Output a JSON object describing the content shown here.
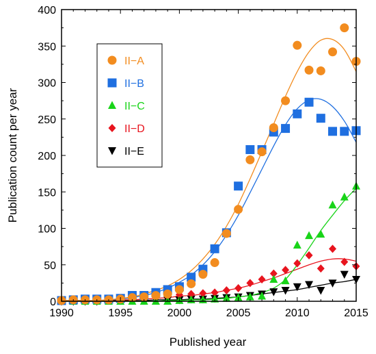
{
  "chart_data": {
    "type": "scatter",
    "title": "",
    "xlabel": "Published year",
    "ylabel": "Publication count per year",
    "xlim": [
      1990,
      2015
    ],
    "ylim": [
      0,
      400
    ],
    "xticks": [
      1990,
      1995,
      2000,
      2005,
      2010,
      2015
    ],
    "yticks": [
      0,
      50,
      100,
      150,
      200,
      250,
      300,
      350,
      400
    ],
    "grid": false,
    "legend_position": "upper-left",
    "x": [
      1990,
      1991,
      1992,
      1993,
      1994,
      1995,
      1996,
      1997,
      1998,
      1999,
      2000,
      2001,
      2002,
      2003,
      2004,
      2005,
      2006,
      2007,
      2008,
      2009,
      2010,
      2011,
      2012,
      2013,
      2014,
      2015
    ],
    "series": [
      {
        "name": "II−A",
        "marker": "circle",
        "color": "#f28c1f",
        "values": [
          1,
          2,
          2,
          2,
          2,
          3,
          5,
          6,
          8,
          10,
          16,
          24,
          37,
          53,
          93,
          126,
          194,
          205,
          238,
          275,
          351,
          317,
          316,
          342,
          375,
          329
        ],
        "trend": [
          1,
          1,
          1,
          1,
          2,
          4,
          6,
          10,
          15,
          21,
          30,
          42,
          58,
          78,
          103,
          133,
          168,
          205,
          243,
          281,
          315,
          342,
          358,
          359,
          345,
          315
        ]
      },
      {
        "name": "II−B",
        "marker": "square",
        "color": "#1f6fe0",
        "values": [
          1,
          2,
          3,
          3,
          3,
          4,
          8,
          8,
          12,
          16,
          20,
          33,
          44,
          72,
          94,
          158,
          208,
          208,
          232,
          237,
          257,
          273,
          251,
          233,
          233,
          234
        ],
        "trend": [
          1,
          1,
          1,
          1,
          2,
          3,
          5,
          8,
          12,
          18,
          26,
          36,
          50,
          68,
          91,
          118,
          149,
          181,
          213,
          242,
          264,
          276,
          277,
          267,
          247,
          218
        ]
      },
      {
        "name": "II−C",
        "marker": "triangle-up",
        "color": "#19d419",
        "values": [
          0,
          0,
          0,
          0,
          0,
          0,
          0,
          0,
          0,
          0,
          1,
          2,
          2,
          3,
          4,
          5,
          6,
          7,
          30,
          28,
          77,
          90,
          92,
          132,
          143,
          158
        ],
        "trend": [
          0,
          0,
          0,
          0,
          0,
          0,
          0,
          0,
          0,
          1,
          1,
          2,
          2,
          3,
          4,
          6,
          8,
          12,
          18,
          30,
          50,
          73,
          97,
          118,
          138,
          155
        ]
      },
      {
        "name": "II−D",
        "marker": "diamond",
        "color": "#e8141e",
        "values": [
          2,
          2,
          3,
          3,
          3,
          3,
          4,
          5,
          6,
          7,
          9,
          10,
          11,
          12,
          15,
          18,
          25,
          30,
          38,
          43,
          52,
          63,
          45,
          72,
          54,
          48
        ],
        "trend": [
          1,
          1,
          1,
          1,
          2,
          2,
          2,
          3,
          4,
          5,
          7,
          8,
          10,
          12,
          15,
          18,
          22,
          27,
          32,
          38,
          44,
          50,
          55,
          58,
          58,
          55
        ]
      },
      {
        "name": "II−E",
        "marker": "triangle-down",
        "color": "#000000",
        "values": [
          0,
          0,
          0,
          0,
          1,
          1,
          1,
          1,
          2,
          2,
          2,
          3,
          3,
          4,
          5,
          6,
          8,
          10,
          13,
          15,
          20,
          23,
          15,
          25,
          37,
          30
        ],
        "trend": [
          0,
          0,
          0,
          0,
          1,
          1,
          1,
          1,
          2,
          2,
          2,
          3,
          3,
          4,
          5,
          6,
          8,
          10,
          12,
          14,
          16,
          19,
          22,
          25,
          27,
          30
        ]
      }
    ]
  }
}
